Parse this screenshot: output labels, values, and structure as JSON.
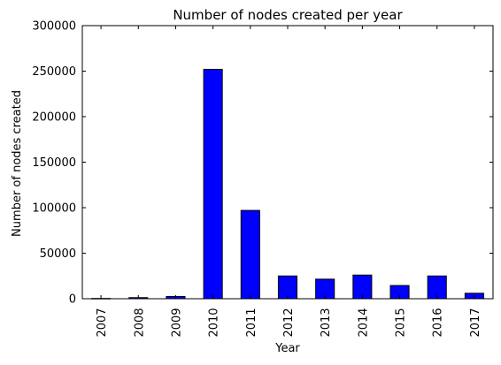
{
  "chart_data": {
    "type": "bar",
    "title": "Number of nodes created per year",
    "xlabel": "Year",
    "ylabel": "Number of nodes created",
    "categories": [
      "2007",
      "2008",
      "2009",
      "2010",
      "2011",
      "2012",
      "2013",
      "2014",
      "2015",
      "2016",
      "2017"
    ],
    "values": [
      300,
      1200,
      2500,
      252000,
      97000,
      25000,
      21500,
      26000,
      14500,
      25000,
      6000
    ],
    "ylim": [
      0,
      300000
    ],
    "yticks": [
      0,
      50000,
      100000,
      150000,
      200000,
      250000,
      300000
    ],
    "ytick_labels": [
      "0",
      "50000",
      "100000",
      "150000",
      "200000",
      "250000",
      "300000"
    ],
    "grid": false,
    "legend": "none",
    "colors": {
      "bar_fill": "#0000ff",
      "bar_edge": "#000000",
      "axes": "#000000",
      "background": "#ffffff"
    }
  }
}
